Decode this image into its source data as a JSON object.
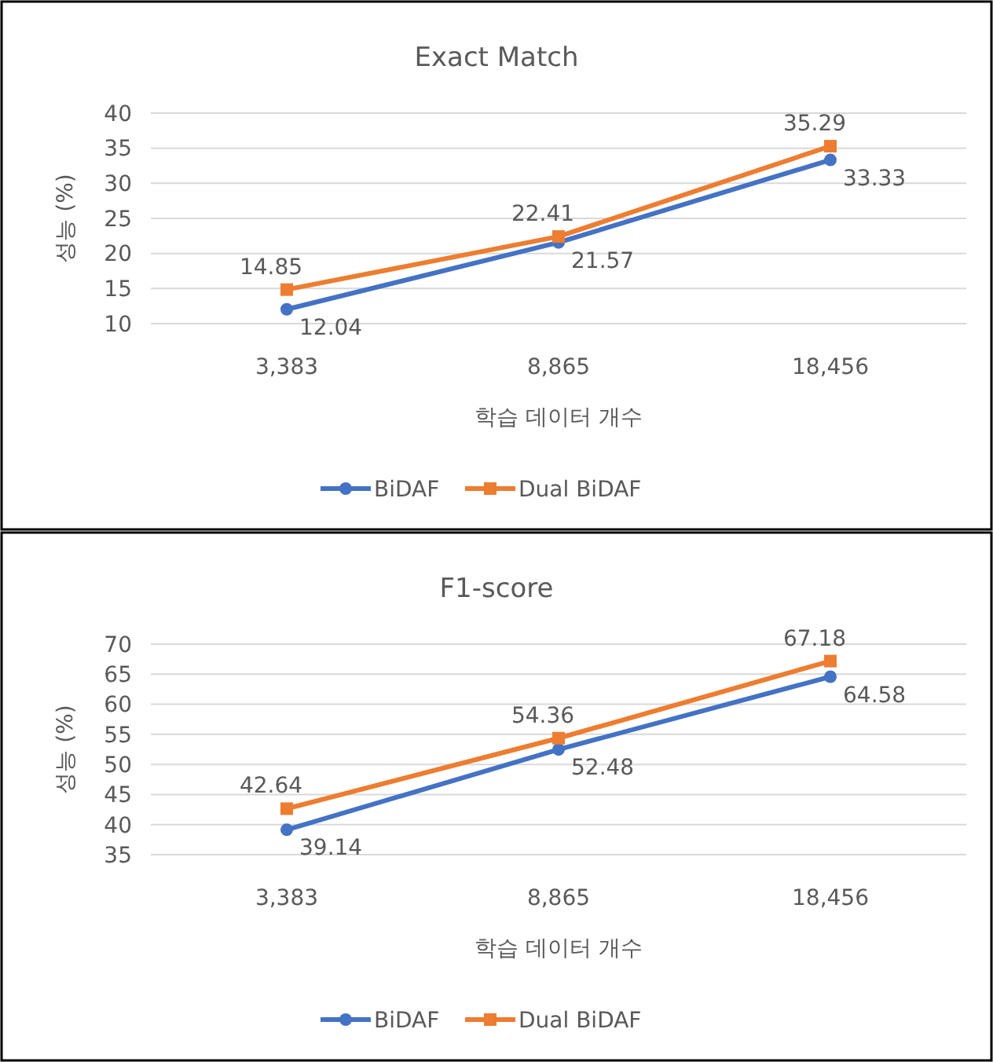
{
  "chart_data": [
    {
      "type": "line",
      "title": "Exact Match",
      "xlabel": "학습 데이터 개수",
      "ylabel": "성능 (%)",
      "categories": [
        "3,383",
        "8,865",
        "18,456"
      ],
      "ylim": [
        10,
        40
      ],
      "yticks": [
        10,
        15,
        20,
        25,
        30,
        35,
        40
      ],
      "grid": "y",
      "legend": "bottom",
      "data_labels": true,
      "series": [
        {
          "name": "BiDAF",
          "color": "#4472c4",
          "marker": "circle",
          "values": [
            12.04,
            21.57,
            33.33
          ]
        },
        {
          "name": "Dual BiDAF",
          "color": "#ed7d31",
          "marker": "square",
          "values": [
            14.85,
            22.41,
            35.29
          ]
        }
      ]
    },
    {
      "type": "line",
      "title": "F1-score",
      "xlabel": "학습 데이터 개수",
      "ylabel": "성능 (%)",
      "categories": [
        "3,383",
        "8,865",
        "18,456"
      ],
      "ylim": [
        35,
        70
      ],
      "yticks": [
        35,
        40,
        45,
        50,
        55,
        60,
        65,
        70
      ],
      "grid": "y",
      "legend": "bottom",
      "data_labels": true,
      "series": [
        {
          "name": "BiDAF",
          "color": "#4472c4",
          "marker": "circle",
          "values": [
            39.14,
            52.48,
            64.58
          ]
        },
        {
          "name": "Dual BiDAF",
          "color": "#ed7d31",
          "marker": "square",
          "values": [
            42.64,
            54.36,
            67.18
          ]
        }
      ]
    }
  ]
}
